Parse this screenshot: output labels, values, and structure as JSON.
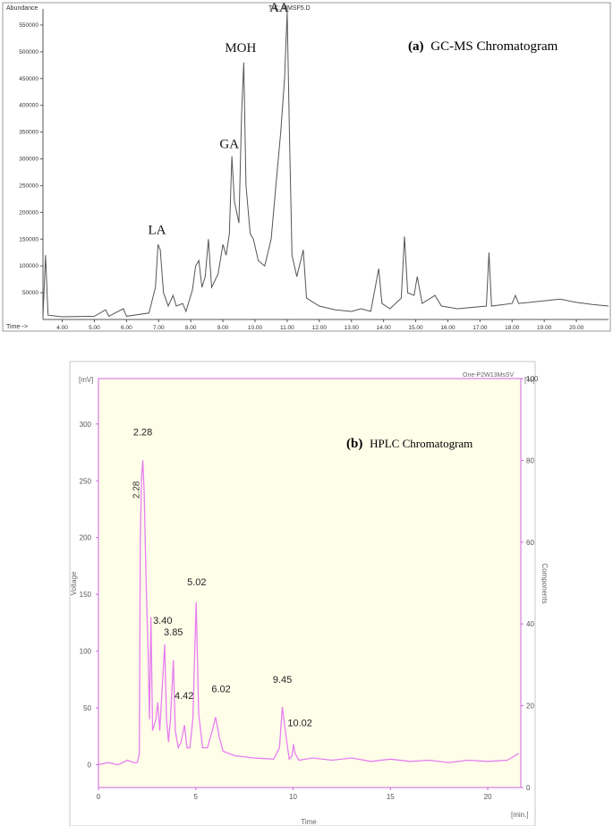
{
  "chart_data": [
    {
      "type": "line",
      "panel_title_prefix": "(a)",
      "panel_title": "GC-MS Chromatogram",
      "ylabel": "Abundance",
      "xlabel": "Time-->",
      "header_label": "TIC: MMSF5.D",
      "xlim": [
        3.4,
        21.0
      ],
      "ylim": [
        0,
        580000
      ],
      "y_ticks": [
        50000,
        100000,
        150000,
        200000,
        250000,
        300000,
        350000,
        400000,
        450000,
        500000,
        550000
      ],
      "y_tick_labels": [
        "50000",
        "100000",
        "150000",
        "200000",
        "250000",
        "300000",
        "350000",
        "400000",
        "450000",
        "500000",
        "550000"
      ],
      "x_ticks": [
        4,
        5,
        6,
        7,
        8,
        9,
        10,
        11,
        12,
        13,
        14,
        15,
        16,
        17,
        18,
        19,
        20
      ],
      "x_tick_labels": [
        "4.00",
        "5.00",
        "6.00",
        "7.00",
        "8.00",
        "9.00",
        "10.00",
        "11.00",
        "12.00",
        "13.00",
        "14.00",
        "15.00",
        "16.00",
        "17.00",
        "18.00",
        "19.00",
        "20.00"
      ],
      "series": [
        {
          "color": "#555555",
          "points": [
            [
              3.4,
              5000
            ],
            [
              3.48,
              120000
            ],
            [
              3.56,
              8000
            ],
            [
              4.0,
              5000
            ],
            [
              5.0,
              6000
            ],
            [
              5.35,
              18000
            ],
            [
              5.45,
              6000
            ],
            [
              5.9,
              20000
            ],
            [
              6.0,
              6000
            ],
            [
              6.7,
              12000
            ],
            [
              6.9,
              60000
            ],
            [
              6.98,
              140000
            ],
            [
              7.05,
              130000
            ],
            [
              7.15,
              50000
            ],
            [
              7.3,
              25000
            ],
            [
              7.45,
              45000
            ],
            [
              7.55,
              25000
            ],
            [
              7.75,
              30000
            ],
            [
              7.85,
              15000
            ],
            [
              8.05,
              55000
            ],
            [
              8.15,
              100000
            ],
            [
              8.25,
              110000
            ],
            [
              8.35,
              60000
            ],
            [
              8.45,
              80000
            ],
            [
              8.55,
              150000
            ],
            [
              8.65,
              60000
            ],
            [
              8.85,
              85000
            ],
            [
              9.0,
              140000
            ],
            [
              9.1,
              120000
            ],
            [
              9.2,
              160000
            ],
            [
              9.28,
              305000
            ],
            [
              9.36,
              220000
            ],
            [
              9.5,
              180000
            ],
            [
              9.58,
              380000
            ],
            [
              9.65,
              480000
            ],
            [
              9.72,
              250000
            ],
            [
              9.85,
              160000
            ],
            [
              9.95,
              150000
            ],
            [
              10.1,
              110000
            ],
            [
              10.3,
              100000
            ],
            [
              10.5,
              150000
            ],
            [
              10.65,
              250000
            ],
            [
              10.8,
              350000
            ],
            [
              10.92,
              450000
            ],
            [
              11.0,
              575000
            ],
            [
              11.07,
              350000
            ],
            [
              11.15,
              120000
            ],
            [
              11.3,
              80000
            ],
            [
              11.5,
              130000
            ],
            [
              11.6,
              40000
            ],
            [
              12.0,
              25000
            ],
            [
              12.5,
              18000
            ],
            [
              13.0,
              15000
            ],
            [
              13.3,
              20000
            ],
            [
              13.6,
              15000
            ],
            [
              13.85,
              95000
            ],
            [
              13.95,
              30000
            ],
            [
              14.2,
              20000
            ],
            [
              14.55,
              40000
            ],
            [
              14.65,
              155000
            ],
            [
              14.75,
              50000
            ],
            [
              14.95,
              45000
            ],
            [
              15.05,
              80000
            ],
            [
              15.2,
              30000
            ],
            [
              15.6,
              45000
            ],
            [
              15.8,
              25000
            ],
            [
              16.3,
              20000
            ],
            [
              17.2,
              25000
            ],
            [
              17.28,
              125000
            ],
            [
              17.36,
              25000
            ],
            [
              18.0,
              30000
            ],
            [
              18.1,
              45000
            ],
            [
              18.2,
              30000
            ],
            [
              19.0,
              35000
            ],
            [
              19.5,
              38000
            ],
            [
              20.0,
              32000
            ],
            [
              20.5,
              28000
            ],
            [
              21.0,
              25000
            ]
          ]
        }
      ],
      "annotations": [
        {
          "text": "LA",
          "x": 6.95,
          "y": 160000
        },
        {
          "text": "GA",
          "x": 9.2,
          "y": 320000
        },
        {
          "text": "MOH",
          "x": 9.55,
          "y": 500000
        },
        {
          "text": "AA",
          "x": 10.75,
          "y": 575000
        }
      ]
    },
    {
      "type": "line",
      "panel_title_prefix": "(b)",
      "panel_title": "HPLC Chromatogram",
      "ylabel": "Voltage",
      "y2label": "Components",
      "xlabel": "Time",
      "y_unit": "[mV]",
      "y2_unit": "[%]",
      "x_unit": "[min.]",
      "header_label": "One-P2W13MsSV",
      "xlim": [
        0,
        21.7
      ],
      "ylim": [
        -20,
        340
      ],
      "y2lim": [
        0,
        100
      ],
      "y_ticks": [
        0,
        50,
        100,
        150,
        200,
        250,
        300
      ],
      "y2_ticks": [
        0,
        20,
        40,
        60,
        80,
        100
      ],
      "x_ticks": [
        0,
        5,
        10,
        15,
        20
      ],
      "series": [
        {
          "color": "#e77ff0",
          "points": [
            [
              0,
              0
            ],
            [
              0.5,
              2
            ],
            [
              1.0,
              0
            ],
            [
              1.5,
              4
            ],
            [
              1.8,
              2
            ],
            [
              2.0,
              2
            ],
            [
              2.1,
              10
            ],
            [
              2.15,
              200
            ],
            [
              2.22,
              255
            ],
            [
              2.28,
              268
            ],
            [
              2.35,
              240
            ],
            [
              2.45,
              160
            ],
            [
              2.55,
              100
            ],
            [
              2.62,
              40
            ],
            [
              2.7,
              130
            ],
            [
              2.78,
              30
            ],
            [
              2.95,
              40
            ],
            [
              3.05,
              55
            ],
            [
              3.15,
              30
            ],
            [
              3.25,
              60
            ],
            [
              3.4,
              106
            ],
            [
              3.5,
              40
            ],
            [
              3.6,
              20
            ],
            [
              3.7,
              40
            ],
            [
              3.85,
              92
            ],
            [
              3.95,
              30
            ],
            [
              4.1,
              15
            ],
            [
              4.25,
              20
            ],
            [
              4.42,
              35
            ],
            [
              4.55,
              15
            ],
            [
              4.7,
              15
            ],
            [
              4.85,
              40
            ],
            [
              5.02,
              143
            ],
            [
              5.15,
              45
            ],
            [
              5.35,
              15
            ],
            [
              5.6,
              15
            ],
            [
              5.85,
              30
            ],
            [
              6.02,
              42
            ],
            [
              6.2,
              25
            ],
            [
              6.4,
              12
            ],
            [
              7.0,
              8
            ],
            [
              8.0,
              6
            ],
            [
              9.0,
              5
            ],
            [
              9.3,
              15
            ],
            [
              9.45,
              51
            ],
            [
              9.6,
              30
            ],
            [
              9.8,
              5
            ],
            [
              9.95,
              8
            ],
            [
              10.02,
              18
            ],
            [
              10.1,
              10
            ],
            [
              10.3,
              4
            ],
            [
              11.0,
              6
            ],
            [
              12.0,
              4
            ],
            [
              13.0,
              6
            ],
            [
              14.0,
              3
            ],
            [
              15.0,
              5
            ],
            [
              16.0,
              3
            ],
            [
              17.0,
              4
            ],
            [
              18.0,
              2
            ],
            [
              19.0,
              4
            ],
            [
              20.0,
              3
            ],
            [
              21.0,
              4
            ],
            [
              21.6,
              10
            ]
          ]
        }
      ],
      "peak_labels": [
        {
          "text": "2.28",
          "x": 2.28,
          "y": 290
        },
        {
          "text": "2.28",
          "x": 2.1,
          "y": 242,
          "rotated": true
        },
        {
          "text": "3.40",
          "x": 3.3,
          "y": 124
        },
        {
          "text": "3.85",
          "x": 3.85,
          "y": 114
        },
        {
          "text": "4.42",
          "x": 4.4,
          "y": 58
        },
        {
          "text": "5.02",
          "x": 5.05,
          "y": 158
        },
        {
          "text": "6.02",
          "x": 6.3,
          "y": 64
        },
        {
          "text": "9.45",
          "x": 9.45,
          "y": 72
        },
        {
          "text": "10.02",
          "x": 10.35,
          "y": 34
        }
      ]
    }
  ]
}
